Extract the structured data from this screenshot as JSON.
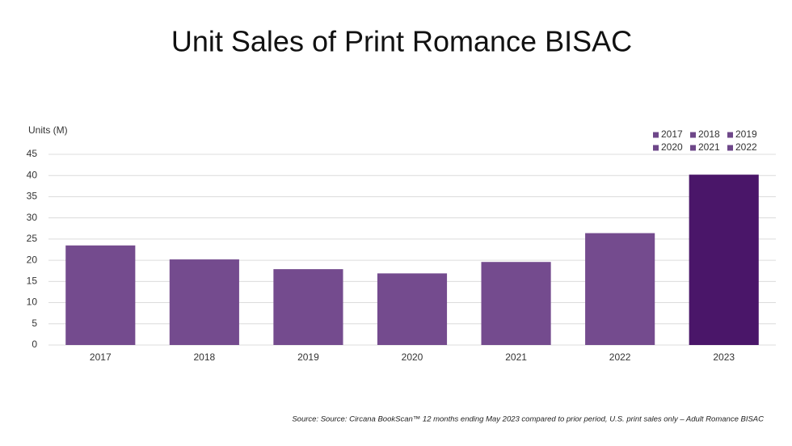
{
  "chart_data": {
    "type": "bar",
    "title": "Unit Sales of Print Romance BISAC",
    "y_label": "Units (M)",
    "categories": [
      "2017",
      "2018",
      "2019",
      "2020",
      "2021",
      "2022",
      "2023"
    ],
    "values": [
      23.5,
      20.2,
      17.9,
      16.9,
      19.6,
      26.4,
      40.2
    ],
    "colors": [
      "#744b8e",
      "#744b8e",
      "#744b8e",
      "#744b8e",
      "#744b8e",
      "#744b8e",
      "#4a1669"
    ],
    "ylim": [
      0,
      45
    ],
    "yticks": [
      0,
      5,
      10,
      15,
      20,
      25,
      30,
      35,
      40,
      45
    ],
    "grid": true,
    "legend": [
      {
        "name": "2017",
        "color": "#6e4789"
      },
      {
        "name": "2018",
        "color": "#6e4789"
      },
      {
        "name": "2019",
        "color": "#6e4789"
      },
      {
        "name": "2020",
        "color": "#6e4789"
      },
      {
        "name": "2021",
        "color": "#6e4789"
      },
      {
        "name": "2022",
        "color": "#6e4789"
      }
    ],
    "legend_position": "upper right",
    "source": "Source: Source: Circana BookScan™ 12 months ending May 2023 compared to prior period, U.S. print sales only – Adult Romance BISAC"
  }
}
